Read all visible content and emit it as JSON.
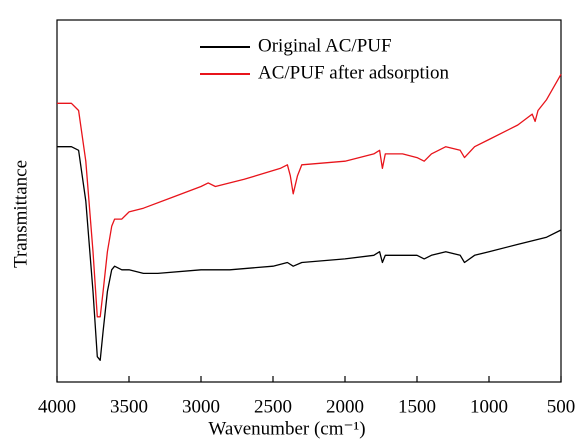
{
  "chart_data": {
    "type": "line",
    "xlabel": "Wavenumber (cm⁻¹)",
    "ylabel": "Transmittance",
    "xlim": [
      4000,
      500
    ],
    "ylim": [
      0,
      100
    ],
    "xticks": [
      4000,
      3500,
      3000,
      2500,
      2000,
      1500,
      1000,
      500
    ],
    "legend": "upper center",
    "series": [
      {
        "name": "Original AC/PUF",
        "color": "#000000",
        "x": [
          4000,
          3900,
          3850,
          3800,
          3750,
          3720,
          3700,
          3680,
          3650,
          3620,
          3600,
          3550,
          3500,
          3400,
          3300,
          3000,
          2950,
          2900,
          2800,
          2500,
          2400,
          2360,
          2300,
          2000,
          1800,
          1760,
          1740,
          1720,
          1600,
          1500,
          1450,
          1400,
          1300,
          1200,
          1170,
          1100,
          1000,
          800,
          600,
          500
        ],
        "values": [
          65,
          65,
          64,
          50,
          25,
          7,
          6,
          14,
          25,
          31,
          32,
          31,
          31,
          30,
          30,
          31,
          31,
          31,
          31,
          32,
          33,
          32,
          33,
          34,
          35,
          36,
          33,
          35,
          35,
          35,
          34,
          35,
          36,
          35,
          33,
          35,
          36,
          38,
          40,
          42
        ]
      },
      {
        "name": "AC/PUF after adsorption",
        "color": "#e8141b",
        "x": [
          4000,
          3900,
          3850,
          3800,
          3750,
          3720,
          3700,
          3680,
          3650,
          3620,
          3600,
          3550,
          3500,
          3400,
          3200,
          3000,
          2950,
          2900,
          2700,
          2450,
          2400,
          2380,
          2360,
          2330,
          2300,
          2000,
          1800,
          1760,
          1740,
          1720,
          1600,
          1500,
          1450,
          1400,
          1300,
          1200,
          1170,
          1100,
          1000,
          800,
          700,
          680,
          660,
          600,
          500
        ],
        "values": [
          77,
          77,
          75,
          61,
          36,
          18,
          18,
          25,
          36,
          43,
          45,
          45,
          47,
          48,
          51,
          54,
          55,
          54,
          56,
          59,
          60,
          57,
          52,
          57,
          60,
          61,
          63,
          64,
          59,
          63,
          63,
          62,
          61,
          63,
          65,
          64,
          62,
          65,
          67,
          71,
          74,
          72,
          75,
          78,
          85
        ]
      }
    ]
  }
}
